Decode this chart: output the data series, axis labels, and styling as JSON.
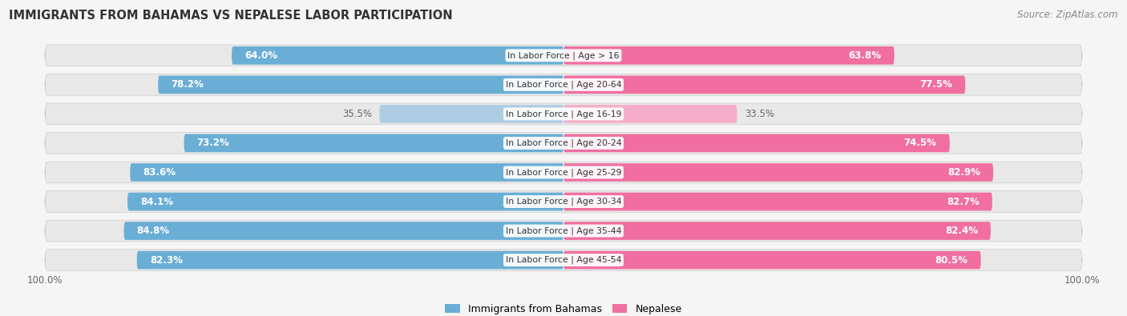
{
  "title": "IMMIGRANTS FROM BAHAMAS VS NEPALESE LABOR PARTICIPATION",
  "source": "Source: ZipAtlas.com",
  "categories": [
    "In Labor Force | Age > 16",
    "In Labor Force | Age 20-64",
    "In Labor Force | Age 16-19",
    "In Labor Force | Age 20-24",
    "In Labor Force | Age 25-29",
    "In Labor Force | Age 30-34",
    "In Labor Force | Age 35-44",
    "In Labor Force | Age 45-54"
  ],
  "bahamas_values": [
    64.0,
    78.2,
    35.5,
    73.2,
    83.6,
    84.1,
    84.8,
    82.3
  ],
  "nepalese_values": [
    63.8,
    77.5,
    33.5,
    74.5,
    82.9,
    82.7,
    82.4,
    80.5
  ],
  "bahamas_color": "#6AAED6",
  "bahamas_color_light": "#AECDE3",
  "nepalese_color": "#F06FA0",
  "nepalese_color_light": "#F5AECA",
  "row_bg_color": "#E8E8E8",
  "bg_color": "#F5F5F5",
  "label_white": "#FFFFFF",
  "label_dark": "#666666",
  "max_val": 100.0,
  "bar_height": 0.62,
  "legend_bahamas": "Immigrants from Bahamas",
  "legend_nepalese": "Nepalese"
}
